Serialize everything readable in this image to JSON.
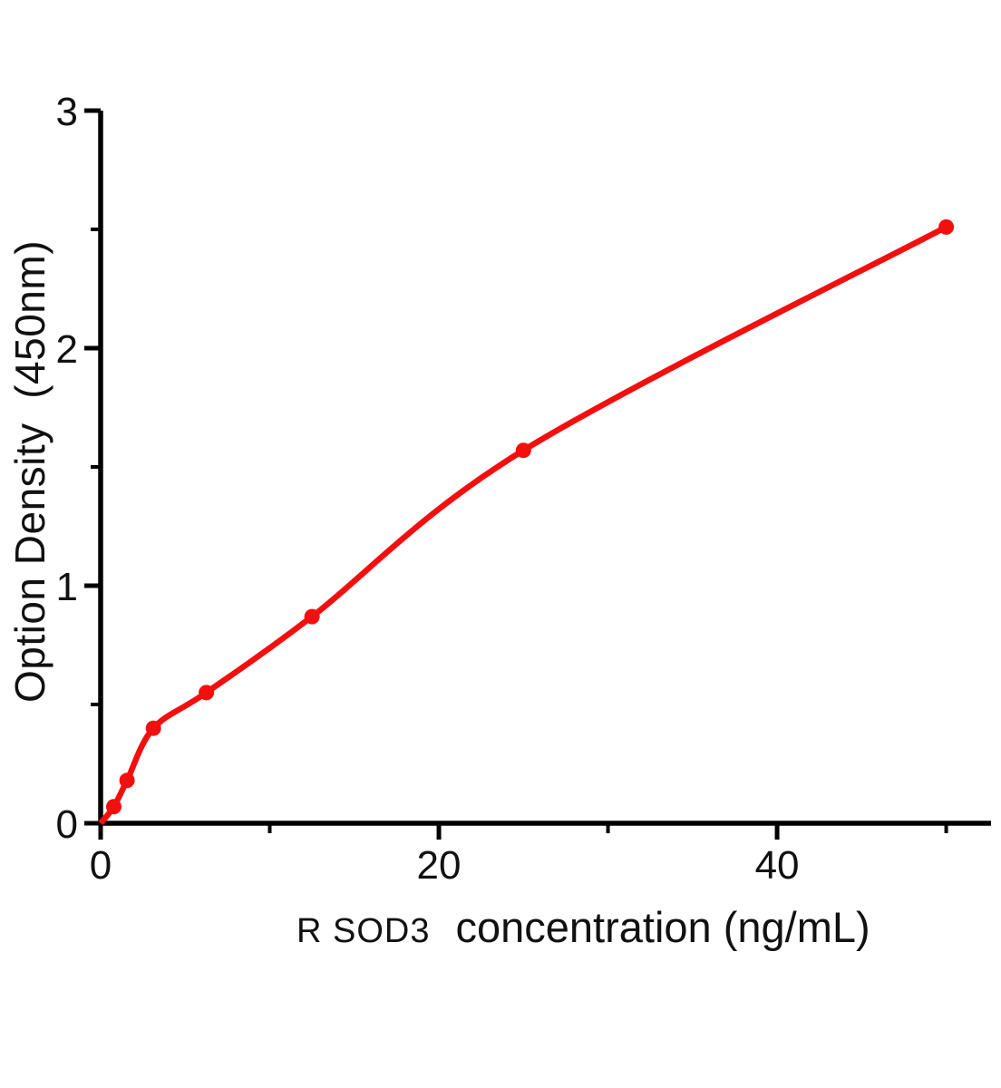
{
  "chart_data": {
    "type": "scatter",
    "title": "",
    "xlabel_prefix": "R SOD3",
    "xlabel": "concentration (ng/mL)",
    "ylabel": "Option Density  (450nm)",
    "x": [
      0.78,
      1.56,
      3.12,
      6.25,
      12.5,
      25,
      50
    ],
    "y": [
      0.07,
      0.18,
      0.4,
      0.55,
      0.87,
      1.57,
      2.51
    ],
    "curve_origin": [
      0,
      0
    ],
    "xlim": [
      0,
      52.65
    ],
    "ylim": [
      0,
      3
    ],
    "x_ticks_major": [
      0,
      20,
      40
    ],
    "x_ticks_minor": [
      10,
      30,
      50
    ],
    "y_ticks_major": [
      0,
      1,
      2,
      3
    ],
    "y_ticks_minor": [
      0.5,
      1.5,
      2.5
    ],
    "point_color": "#f40f0f",
    "line_color": "#f40f0f",
    "axis_color": "#000000",
    "grid": false,
    "legend": false,
    "marker": "circle"
  }
}
